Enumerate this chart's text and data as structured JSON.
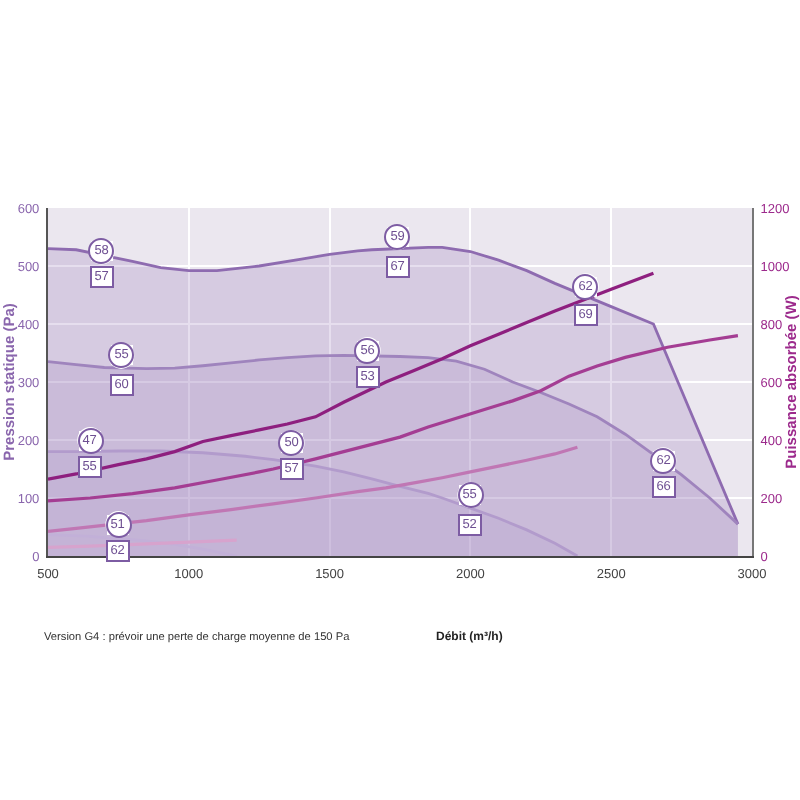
{
  "chart_data": {
    "type": "line",
    "xlabel": "Débit (m³/h)",
    "ylabel": "Pression statique (Pa)",
    "y2label": "Puissance absorbée (W)",
    "xlim": [
      500,
      3000
    ],
    "xticks": [
      500,
      1000,
      1500,
      2000,
      2500,
      3000
    ],
    "ylim": [
      0,
      600
    ],
    "yticks": [
      0,
      100,
      200,
      300,
      400,
      500,
      600
    ],
    "y2lim": [
      0,
      1200
    ],
    "y2ticks": [
      0,
      200,
      400,
      600,
      800,
      1000,
      1200
    ],
    "grid": true,
    "series": [
      {
        "type": "area",
        "color": "#8e6bb0",
        "x": [
          500,
          600,
          800,
          900,
          1000,
          1100,
          1250,
          1400,
          1500,
          1600,
          1650,
          1850,
          1900,
          2000,
          2100,
          2200,
          2300,
          2500,
          2650,
          2950
        ],
        "values": [
          530,
          528,
          508,
          497,
          492,
          492,
          500,
          512,
          520,
          526,
          528,
          532,
          532,
          525,
          510,
          492,
          470,
          430,
          400,
          55
        ]
      },
      {
        "type": "area",
        "color": "#9f84bd",
        "x": [
          500,
          600,
          700,
          850,
          950,
          1050,
          1150,
          1250,
          1350,
          1450,
          1550,
          1750,
          1850,
          1950,
          2050,
          2150,
          2250,
          2350,
          2450,
          2550,
          2750,
          2850,
          2950
        ],
        "values": [
          335,
          330,
          325,
          323,
          324,
          328,
          333,
          338,
          342,
          345,
          346,
          344,
          342,
          336,
          322,
          300,
          282,
          262,
          240,
          210,
          140,
          100,
          55
        ]
      },
      {
        "type": "area",
        "color": "#b29bcc",
        "x": [
          500,
          600,
          750,
          900,
          1050,
          1200,
          1300,
          1450,
          1550,
          1650,
          1750,
          1850,
          1900,
          2100,
          2200,
          2300,
          2380
        ],
        "values": [
          180,
          180,
          181,
          181,
          178,
          172,
          166,
          155,
          145,
          133,
          120,
          108,
          100,
          65,
          45,
          22,
          0
        ]
      },
      {
        "type": "area",
        "color": "#c2b0d8",
        "x": [
          500,
          650,
          850,
          950,
          1050,
          1170
        ],
        "values": [
          37,
          34,
          26,
          20,
          12,
          0
        ]
      },
      {
        "axis": "y2",
        "color": "#8e1f7f",
        "x": [
          500,
          600,
          750,
          850,
          950,
          1050,
          1150,
          1250,
          1350,
          1450,
          1550,
          1700,
          1800,
          1900,
          2000,
          2100,
          2200,
          2300,
          2500,
          2650
        ],
        "values": [
          265,
          283,
          315,
          335,
          360,
          395,
          415,
          435,
          455,
          480,
          530,
          600,
          640,
          680,
          725,
          765,
          805,
          845,
          920,
          975
        ]
      },
      {
        "axis": "y2",
        "color": "#a43d93",
        "x": [
          500,
          650,
          800,
          950,
          1100,
          1250,
          1300,
          1450,
          1550,
          1650,
          1750,
          1850,
          1950,
          2050,
          2150,
          2250,
          2350,
          2450,
          2550,
          2700,
          2850,
          2950
        ],
        "values": [
          190,
          200,
          215,
          235,
          262,
          290,
          300,
          335,
          360,
          385,
          410,
          445,
          475,
          505,
          535,
          570,
          620,
          655,
          685,
          720,
          745,
          760
        ]
      },
      {
        "axis": "y2",
        "color": "#c077b4",
        "x": [
          500,
          600,
          850,
          1000,
          1150,
          1300,
          1450,
          1600,
          1700,
          1800,
          1900,
          2000,
          2100,
          2200,
          2300,
          2380
        ],
        "values": [
          85,
          95,
          122,
          142,
          160,
          180,
          200,
          222,
          235,
          252,
          270,
          290,
          310,
          330,
          352,
          375
        ]
      },
      {
        "axis": "y2",
        "color": "#d7a3cd",
        "x": [
          500,
          650,
          850,
          1000,
          1170
        ],
        "values": [
          30,
          34,
          42,
          48,
          55
        ]
      }
    ],
    "annotations": [
      {
        "text": "58",
        "x": 690,
        "y": 525
      },
      {
        "text": "57",
        "x": 690,
        "y": 480
      },
      {
        "text": "59",
        "x": 1740,
        "y": 550
      },
      {
        "text": "67",
        "x": 1740,
        "y": 500
      },
      {
        "text": "62",
        "x": 2410,
        "y": 465
      },
      {
        "text": "69",
        "x": 2410,
        "y": 415
      },
      {
        "text": "55",
        "x": 760,
        "y": 345
      },
      {
        "text": "60",
        "x": 760,
        "y": 295
      },
      {
        "text": "56",
        "x": 1635,
        "y": 355
      },
      {
        "text": "53",
        "x": 1635,
        "y": 310
      },
      {
        "text": "62",
        "x": 2685,
        "y": 165
      },
      {
        "text": "66",
        "x": 2685,
        "y": 120
      },
      {
        "text": "47",
        "x": 650,
        "y": 200
      },
      {
        "text": "55",
        "x": 650,
        "y": 155
      },
      {
        "text": "50",
        "x": 1365,
        "y": 195
      },
      {
        "text": "57",
        "x": 1365,
        "y": 150
      },
      {
        "text": "55",
        "x": 2000,
        "y": 105
      },
      {
        "text": "52",
        "x": 2000,
        "y": 55
      },
      {
        "text": "51",
        "x": 750,
        "y": 55
      },
      {
        "text": "62",
        "x": 750,
        "y": 10
      },
      "Version G4 : prévoir une perte de charge moyenne de 150 Pa"
    ]
  }
}
